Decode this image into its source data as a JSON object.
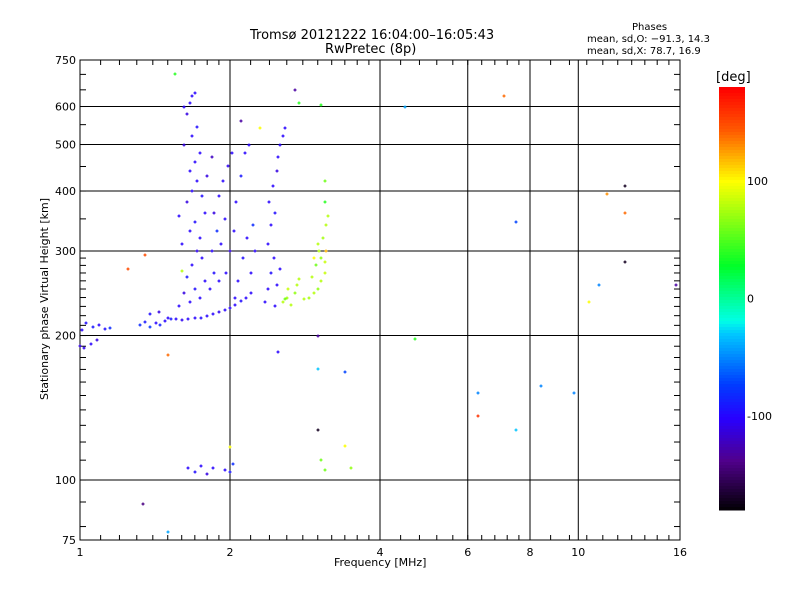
{
  "chart_data": {
    "type": "scatter",
    "title": "Tromsø 20121222 16:04:00–16:05:43",
    "subtitle": "RwPretec (8p)",
    "xlabel": "Frequency [MHz]",
    "ylabel": "Stationary phase Virtual Height [km]",
    "xscale": "log",
    "yscale": "log",
    "xlim": [
      1,
      16
    ],
    "ylim": [
      75,
      750
    ],
    "xticks": [
      1,
      2,
      4,
      6,
      8,
      10,
      16
    ],
    "yticks": [
      75,
      100,
      200,
      300,
      400,
      500,
      600,
      750
    ],
    "grid": true,
    "stats": {
      "title": "Phases",
      "o_line": "mean, sd,O: −91.3, 14.3",
      "x_line": "mean, sd,X:  78.7, 16.9"
    },
    "colorbar": {
      "label": "[deg]",
      "range": [
        -180,
        180
      ],
      "ticks": [
        100,
        0,
        -100
      ]
    },
    "points_columns": [
      "freq_MHz",
      "height_km",
      "phase_deg"
    ],
    "points": [
      [
        1.0,
        190,
        -110
      ],
      [
        1.02,
        188,
        -105
      ],
      [
        1.05,
        192,
        -100
      ],
      [
        1.08,
        196,
        -110
      ],
      [
        1.01,
        205,
        -100
      ],
      [
        1.03,
        212,
        -95
      ],
      [
        1.06,
        208,
        -90
      ],
      [
        1.09,
        210,
        -100
      ],
      [
        1.12,
        206,
        -95
      ],
      [
        1.15,
        207,
        -80
      ],
      [
        1.32,
        210,
        -80
      ],
      [
        1.35,
        213,
        -90
      ],
      [
        1.38,
        208,
        -75
      ],
      [
        1.42,
        212,
        -100
      ],
      [
        1.45,
        210,
        -85
      ],
      [
        1.48,
        214,
        -100
      ],
      [
        1.38,
        222,
        -95
      ],
      [
        1.44,
        224,
        -110
      ],
      [
        1.5,
        218,
        -100
      ],
      [
        1.52,
        216,
        -90
      ],
      [
        1.56,
        216,
        -100
      ],
      [
        1.6,
        215,
        -105
      ],
      [
        1.65,
        216,
        -100
      ],
      [
        1.7,
        218,
        -100
      ],
      [
        1.75,
        218,
        -95
      ],
      [
        1.8,
        220,
        -100
      ],
      [
        1.85,
        222,
        -100
      ],
      [
        1.9,
        224,
        -105
      ],
      [
        1.95,
        226,
        -100
      ],
      [
        2.0,
        228,
        -100
      ],
      [
        2.05,
        232,
        -100
      ],
      [
        2.1,
        236,
        -95
      ],
      [
        2.15,
        240,
        -100
      ],
      [
        2.2,
        245,
        -100
      ],
      [
        1.58,
        230,
        -100
      ],
      [
        1.62,
        245,
        -110
      ],
      [
        1.66,
        235,
        -100
      ],
      [
        1.7,
        250,
        -95
      ],
      [
        1.74,
        240,
        -100
      ],
      [
        1.78,
        260,
        -100
      ],
      [
        1.64,
        265,
        -90
      ],
      [
        1.68,
        280,
        -100
      ],
      [
        1.72,
        300,
        -105
      ],
      [
        1.76,
        290,
        -100
      ],
      [
        1.6,
        310,
        -100
      ],
      [
        1.66,
        330,
        -100
      ],
      [
        1.7,
        345,
        -95
      ],
      [
        1.74,
        320,
        -100
      ],
      [
        1.78,
        360,
        -100
      ],
      [
        1.64,
        380,
        -110
      ],
      [
        1.68,
        400,
        -100
      ],
      [
        1.72,
        420,
        -100
      ],
      [
        1.76,
        390,
        -95
      ],
      [
        1.66,
        440,
        -100
      ],
      [
        1.7,
        460,
        -100
      ],
      [
        1.74,
        480,
        -100
      ],
      [
        1.62,
        500,
        -110
      ],
      [
        1.68,
        520,
        -100
      ],
      [
        1.72,
        545,
        -95
      ],
      [
        1.64,
        580,
        -110
      ],
      [
        1.66,
        610,
        -100
      ],
      [
        1.68,
        630,
        -100
      ],
      [
        1.7,
        640,
        -100
      ],
      [
        1.62,
        600,
        -100
      ],
      [
        1.58,
        355,
        -100
      ],
      [
        1.82,
        250,
        -100
      ],
      [
        1.86,
        270,
        -95
      ],
      [
        1.9,
        260,
        -100
      ],
      [
        1.84,
        300,
        -100
      ],
      [
        1.88,
        330,
        -80
      ],
      [
        1.92,
        310,
        -100
      ],
      [
        1.86,
        360,
        -110
      ],
      [
        1.9,
        390,
        -100
      ],
      [
        1.94,
        420,
        -100
      ],
      [
        1.98,
        450,
        -105
      ],
      [
        2.02,
        480,
        -100
      ],
      [
        1.96,
        270,
        -100
      ],
      [
        2.0,
        300,
        -110
      ],
      [
        2.04,
        330,
        -100
      ],
      [
        2.08,
        260,
        -100
      ],
      [
        2.12,
        290,
        -95
      ],
      [
        2.16,
        320,
        -100
      ],
      [
        2.06,
        380,
        -100
      ],
      [
        2.1,
        430,
        -90
      ],
      [
        2.14,
        480,
        -100
      ],
      [
        2.18,
        500,
        -100
      ],
      [
        2.2,
        270,
        -100
      ],
      [
        2.24,
        300,
        -100
      ],
      [
        2.22,
        340,
        -80
      ],
      [
        1.8,
        430,
        -110
      ],
      [
        1.84,
        470,
        -120
      ],
      [
        2.05,
        240,
        -100
      ],
      [
        1.95,
        350,
        -100
      ],
      [
        2.35,
        235,
        -100
      ],
      [
        2.38,
        250,
        -100
      ],
      [
        2.42,
        270,
        -95
      ],
      [
        2.45,
        290,
        -100
      ],
      [
        2.38,
        310,
        -100
      ],
      [
        2.42,
        340,
        -100
      ],
      [
        2.46,
        360,
        -95
      ],
      [
        2.4,
        380,
        -100
      ],
      [
        2.44,
        410,
        -100
      ],
      [
        2.48,
        440,
        -110
      ],
      [
        2.5,
        470,
        -100
      ],
      [
        2.52,
        500,
        -100
      ],
      [
        2.55,
        520,
        -100
      ],
      [
        2.58,
        540,
        -100
      ],
      [
        2.48,
        255,
        -100
      ],
      [
        2.52,
        275,
        -100
      ],
      [
        2.46,
        230,
        -100
      ],
      [
        2.55,
        235,
        80
      ],
      [
        2.6,
        240,
        75
      ],
      [
        2.65,
        232,
        80
      ],
      [
        2.7,
        245,
        70
      ],
      [
        2.62,
        250,
        85
      ],
      [
        2.72,
        255,
        80
      ],
      [
        2.58,
        238,
        60
      ],
      [
        2.75,
        262,
        80
      ],
      [
        2.82,
        238,
        80
      ],
      [
        2.88,
        240,
        75
      ],
      [
        2.95,
        245,
        80
      ],
      [
        3.0,
        250,
        70
      ],
      [
        3.05,
        260,
        80
      ],
      [
        3.1,
        270,
        85
      ],
      [
        2.92,
        265,
        80
      ],
      [
        2.98,
        280,
        60
      ],
      [
        3.02,
        300,
        80
      ],
      [
        3.08,
        320,
        75
      ],
      [
        3.12,
        340,
        80
      ],
      [
        3.15,
        355,
        80
      ],
      [
        3.05,
        290,
        70
      ],
      [
        3.1,
        285,
        85
      ],
      [
        3.0,
        310,
        80
      ],
      [
        2.95,
        290,
        100
      ],
      [
        3.12,
        300,
        120
      ],
      [
        1.65,
        106,
        -100
      ],
      [
        1.7,
        104,
        -95
      ],
      [
        1.75,
        107,
        -100
      ],
      [
        1.8,
        103,
        -110
      ],
      [
        1.85,
        106,
        -100
      ],
      [
        1.95,
        105,
        -100
      ],
      [
        2.0,
        104,
        -90
      ],
      [
        2.03,
        108,
        -80
      ],
      [
        1.55,
        700,
        40
      ],
      [
        2.7,
        650,
        -130
      ],
      [
        2.75,
        610,
        40
      ],
      [
        3.05,
        605,
        40
      ],
      [
        2.1,
        560,
        -130
      ],
      [
        2.3,
        540,
        100
      ],
      [
        3.1,
        420,
        60
      ],
      [
        3.1,
        380,
        40
      ],
      [
        4.5,
        600,
        -40
      ],
      [
        7.1,
        630,
        140
      ],
      [
        7.5,
        345,
        -70
      ],
      [
        11.4,
        395,
        130
      ],
      [
        12.4,
        410,
        -170
      ],
      [
        12.4,
        360,
        140
      ],
      [
        12.4,
        285,
        -170
      ],
      [
        11,
        255,
        -50
      ],
      [
        10.5,
        235,
        100
      ],
      [
        15.7,
        255,
        -130
      ],
      [
        1.25,
        275,
        150
      ],
      [
        1.35,
        295,
        150
      ],
      [
        1.6,
        272,
        80
      ],
      [
        2.5,
        185,
        -100
      ],
      [
        3.0,
        200,
        -130
      ],
      [
        3.0,
        170,
        -30
      ],
      [
        3.4,
        168,
        -70
      ],
      [
        4.7,
        197,
        40
      ],
      [
        6.3,
        152,
        -50
      ],
      [
        6.3,
        136,
        160
      ],
      [
        7.5,
        127,
        -30
      ],
      [
        8.4,
        157,
        -50
      ],
      [
        9.8,
        152,
        -50
      ],
      [
        2.0,
        117,
        100
      ],
      [
        3.0,
        127,
        -170
      ],
      [
        3.05,
        110,
        60
      ],
      [
        3.1,
        105,
        60
      ],
      [
        3.5,
        106,
        70
      ],
      [
        3.4,
        118,
        100
      ],
      [
        1.34,
        89,
        -140
      ],
      [
        1.5,
        182,
        140
      ],
      [
        1.5,
        78,
        -40
      ]
    ]
  }
}
